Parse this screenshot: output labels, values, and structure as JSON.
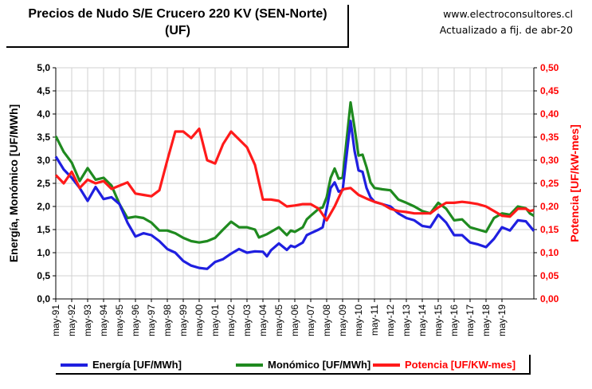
{
  "header": {
    "title_line1": "Precios de Nudo S/E Crucero 220 KV (SEN-Norte)",
    "title_line2": "(UF)",
    "website": "www.electroconsultores.cl",
    "updated": "Actualizado a fij. de abr-20"
  },
  "chart_data": {
    "type": "line",
    "y_left_label": "Energía, Monómico [UF/MWh]",
    "y_right_label": "Potencia [UF/kW-mes]",
    "y_left_lim": [
      0,
      5
    ],
    "y_right_lim": [
      0,
      0.5
    ],
    "y_left_ticks": [
      "0,0",
      "0,5",
      "1,0",
      "1,5",
      "2,0",
      "2,5",
      "3,0",
      "3,5",
      "4,0",
      "4,5",
      "5,0"
    ],
    "y_right_ticks": [
      "0,00",
      "0,05",
      "0,10",
      "0,15",
      "0,20",
      "0,25",
      "0,30",
      "0,35",
      "0,40",
      "0,45",
      "0,50"
    ],
    "x_ticks": [
      "may-91",
      "may-92",
      "may-93",
      "may-94",
      "may-95",
      "may-96",
      "may-97",
      "may-98",
      "may-99",
      "may-00",
      "may-01",
      "may-02",
      "may-03",
      "may-04",
      "may-05",
      "may-06",
      "may-07",
      "may-08",
      "may-09",
      "may-10",
      "may-11",
      "may-12",
      "may-13",
      "may-14",
      "may-15",
      "may-16",
      "may-17",
      "may-18",
      "may-19"
    ],
    "grid": true,
    "legend_placement": "bottom",
    "colors": {
      "energia": "#1f1fe0",
      "monomico": "#1f8a1f",
      "potencia": "#ff1a1a",
      "axis_right": "#ff0000"
    },
    "series": [
      {
        "name": "Energía [UF/MWh]",
        "axis": "left",
        "points": [
          [
            1991.33,
            3.08
          ],
          [
            1991.83,
            2.8
          ],
          [
            1992.33,
            2.62
          ],
          [
            1992.83,
            2.4
          ],
          [
            1993.33,
            2.12
          ],
          [
            1993.83,
            2.42
          ],
          [
            1994.33,
            2.16
          ],
          [
            1994.83,
            2.2
          ],
          [
            1995.33,
            2.05
          ],
          [
            1995.83,
            1.65
          ],
          [
            1996.33,
            1.35
          ],
          [
            1996.83,
            1.42
          ],
          [
            1997.33,
            1.38
          ],
          [
            1997.83,
            1.25
          ],
          [
            1998.33,
            1.08
          ],
          [
            1998.83,
            1.0
          ],
          [
            1999.33,
            0.82
          ],
          [
            1999.83,
            0.72
          ],
          [
            2000.33,
            0.67
          ],
          [
            2000.83,
            0.65
          ],
          [
            2001.33,
            0.8
          ],
          [
            2001.83,
            0.86
          ],
          [
            2002.33,
            0.98
          ],
          [
            2002.83,
            1.08
          ],
          [
            2003.33,
            1.0
          ],
          [
            2003.83,
            1.03
          ],
          [
            2004.33,
            1.02
          ],
          [
            2004.58,
            0.92
          ],
          [
            2004.83,
            1.05
          ],
          [
            2005.33,
            1.2
          ],
          [
            2005.83,
            1.06
          ],
          [
            2006.08,
            1.15
          ],
          [
            2006.33,
            1.12
          ],
          [
            2006.83,
            1.22
          ],
          [
            2007.08,
            1.38
          ],
          [
            2007.33,
            1.42
          ],
          [
            2007.83,
            1.5
          ],
          [
            2008.08,
            1.55
          ],
          [
            2008.33,
            1.95
          ],
          [
            2008.58,
            2.4
          ],
          [
            2008.83,
            2.52
          ],
          [
            2009.08,
            2.32
          ],
          [
            2009.33,
            2.35
          ],
          [
            2009.83,
            3.85
          ],
          [
            2010.08,
            3.2
          ],
          [
            2010.33,
            2.78
          ],
          [
            2010.58,
            2.75
          ],
          [
            2010.83,
            2.4
          ],
          [
            2011.08,
            2.2
          ],
          [
            2011.33,
            2.1
          ],
          [
            2011.83,
            2.05
          ],
          [
            2012.33,
            2.0
          ],
          [
            2012.83,
            1.85
          ],
          [
            2013.33,
            1.75
          ],
          [
            2013.83,
            1.7
          ],
          [
            2014.33,
            1.58
          ],
          [
            2014.83,
            1.55
          ],
          [
            2015.33,
            1.82
          ],
          [
            2015.83,
            1.65
          ],
          [
            2016.33,
            1.38
          ],
          [
            2016.83,
            1.38
          ],
          [
            2017.33,
            1.22
          ],
          [
            2017.83,
            1.18
          ],
          [
            2018.33,
            1.12
          ],
          [
            2018.83,
            1.3
          ],
          [
            2019.33,
            1.55
          ],
          [
            2019.83,
            1.48
          ],
          [
            2020.33,
            1.7
          ],
          [
            2020.83,
            1.68
          ],
          [
            2021.33,
            1.47
          ]
        ]
      },
      {
        "name": "Monómico [UF/MWh]",
        "axis": "left",
        "points": [
          [
            1991.33,
            3.52
          ],
          [
            1991.83,
            3.18
          ],
          [
            1992.33,
            2.95
          ],
          [
            1992.83,
            2.55
          ],
          [
            1993.33,
            2.83
          ],
          [
            1993.83,
            2.58
          ],
          [
            1994.33,
            2.62
          ],
          [
            1994.83,
            2.45
          ],
          [
            1995.33,
            2.05
          ],
          [
            1995.83,
            1.75
          ],
          [
            1996.33,
            1.78
          ],
          [
            1996.83,
            1.75
          ],
          [
            1997.33,
            1.65
          ],
          [
            1997.83,
            1.48
          ],
          [
            1998.33,
            1.48
          ],
          [
            1998.83,
            1.42
          ],
          [
            1999.33,
            1.32
          ],
          [
            1999.83,
            1.25
          ],
          [
            2000.33,
            1.22
          ],
          [
            2000.83,
            1.25
          ],
          [
            2001.33,
            1.32
          ],
          [
            2001.83,
            1.5
          ],
          [
            2002.33,
            1.67
          ],
          [
            2002.83,
            1.55
          ],
          [
            2003.33,
            1.55
          ],
          [
            2003.83,
            1.5
          ],
          [
            2004.08,
            1.33
          ],
          [
            2004.58,
            1.4
          ],
          [
            2004.83,
            1.45
          ],
          [
            2005.33,
            1.55
          ],
          [
            2005.83,
            1.38
          ],
          [
            2006.08,
            1.48
          ],
          [
            2006.33,
            1.45
          ],
          [
            2006.83,
            1.55
          ],
          [
            2007.08,
            1.72
          ],
          [
            2007.33,
            1.8
          ],
          [
            2007.83,
            1.95
          ],
          [
            2008.08,
            1.98
          ],
          [
            2008.33,
            2.2
          ],
          [
            2008.58,
            2.62
          ],
          [
            2008.83,
            2.82
          ],
          [
            2009.08,
            2.6
          ],
          [
            2009.33,
            2.62
          ],
          [
            2009.83,
            4.25
          ],
          [
            2010.08,
            3.7
          ],
          [
            2010.33,
            3.1
          ],
          [
            2010.58,
            3.12
          ],
          [
            2010.83,
            2.85
          ],
          [
            2011.08,
            2.52
          ],
          [
            2011.33,
            2.4
          ],
          [
            2011.83,
            2.37
          ],
          [
            2012.33,
            2.35
          ],
          [
            2012.83,
            2.15
          ],
          [
            2013.33,
            2.08
          ],
          [
            2013.83,
            2.0
          ],
          [
            2014.33,
            1.9
          ],
          [
            2014.83,
            1.85
          ],
          [
            2015.33,
            2.08
          ],
          [
            2015.83,
            1.95
          ],
          [
            2016.33,
            1.7
          ],
          [
            2016.83,
            1.72
          ],
          [
            2017.33,
            1.55
          ],
          [
            2017.83,
            1.5
          ],
          [
            2018.33,
            1.45
          ],
          [
            2018.83,
            1.75
          ],
          [
            2019.33,
            1.85
          ],
          [
            2019.83,
            1.82
          ],
          [
            2020.33,
            2.0
          ],
          [
            2020.83,
            1.96
          ],
          [
            2021.08,
            1.85
          ],
          [
            2021.33,
            1.8
          ]
        ]
      },
      {
        "name": "Potencia [UF/KW-mes]",
        "axis": "right",
        "points": [
          [
            1991.33,
            0.268
          ],
          [
            1991.83,
            0.25
          ],
          [
            1992.33,
            0.275
          ],
          [
            1992.83,
            0.24
          ],
          [
            1993.33,
            0.258
          ],
          [
            1993.83,
            0.25
          ],
          [
            1994.33,
            0.255
          ],
          [
            1994.83,
            0.238
          ],
          [
            1995.33,
            0.245
          ],
          [
            1995.83,
            0.252
          ],
          [
            1996.33,
            0.228
          ],
          [
            1996.83,
            0.225
          ],
          [
            1997.33,
            0.222
          ],
          [
            1997.83,
            0.235
          ],
          [
            1998.33,
            0.3
          ],
          [
            1998.83,
            0.362
          ],
          [
            1999.33,
            0.362
          ],
          [
            1999.83,
            0.348
          ],
          [
            2000.33,
            0.368
          ],
          [
            2000.83,
            0.3
          ],
          [
            2001.33,
            0.293
          ],
          [
            2001.83,
            0.335
          ],
          [
            2002.33,
            0.362
          ],
          [
            2002.83,
            0.345
          ],
          [
            2003.33,
            0.328
          ],
          [
            2003.83,
            0.29
          ],
          [
            2004.33,
            0.215
          ],
          [
            2004.83,
            0.215
          ],
          [
            2005.33,
            0.212
          ],
          [
            2005.83,
            0.2
          ],
          [
            2006.33,
            0.202
          ],
          [
            2006.83,
            0.205
          ],
          [
            2007.33,
            0.205
          ],
          [
            2007.83,
            0.195
          ],
          [
            2008.33,
            0.17
          ],
          [
            2008.83,
            0.2
          ],
          [
            2009.33,
            0.237
          ],
          [
            2009.83,
            0.24
          ],
          [
            2010.33,
            0.225
          ],
          [
            2010.83,
            0.217
          ],
          [
            2011.33,
            0.21
          ],
          [
            2011.83,
            0.205
          ],
          [
            2012.33,
            0.195
          ],
          [
            2012.83,
            0.19
          ],
          [
            2013.33,
            0.188
          ],
          [
            2013.83,
            0.185
          ],
          [
            2014.33,
            0.185
          ],
          [
            2014.83,
            0.185
          ],
          [
            2015.33,
            0.198
          ],
          [
            2015.83,
            0.208
          ],
          [
            2016.33,
            0.208
          ],
          [
            2016.83,
            0.21
          ],
          [
            2017.33,
            0.208
          ],
          [
            2017.83,
            0.205
          ],
          [
            2018.33,
            0.2
          ],
          [
            2018.83,
            0.19
          ],
          [
            2019.33,
            0.18
          ],
          [
            2019.83,
            0.178
          ],
          [
            2020.33,
            0.195
          ],
          [
            2020.83,
            0.195
          ],
          [
            2021.08,
            0.19
          ],
          [
            2021.33,
            0.192
          ]
        ]
      }
    ]
  }
}
